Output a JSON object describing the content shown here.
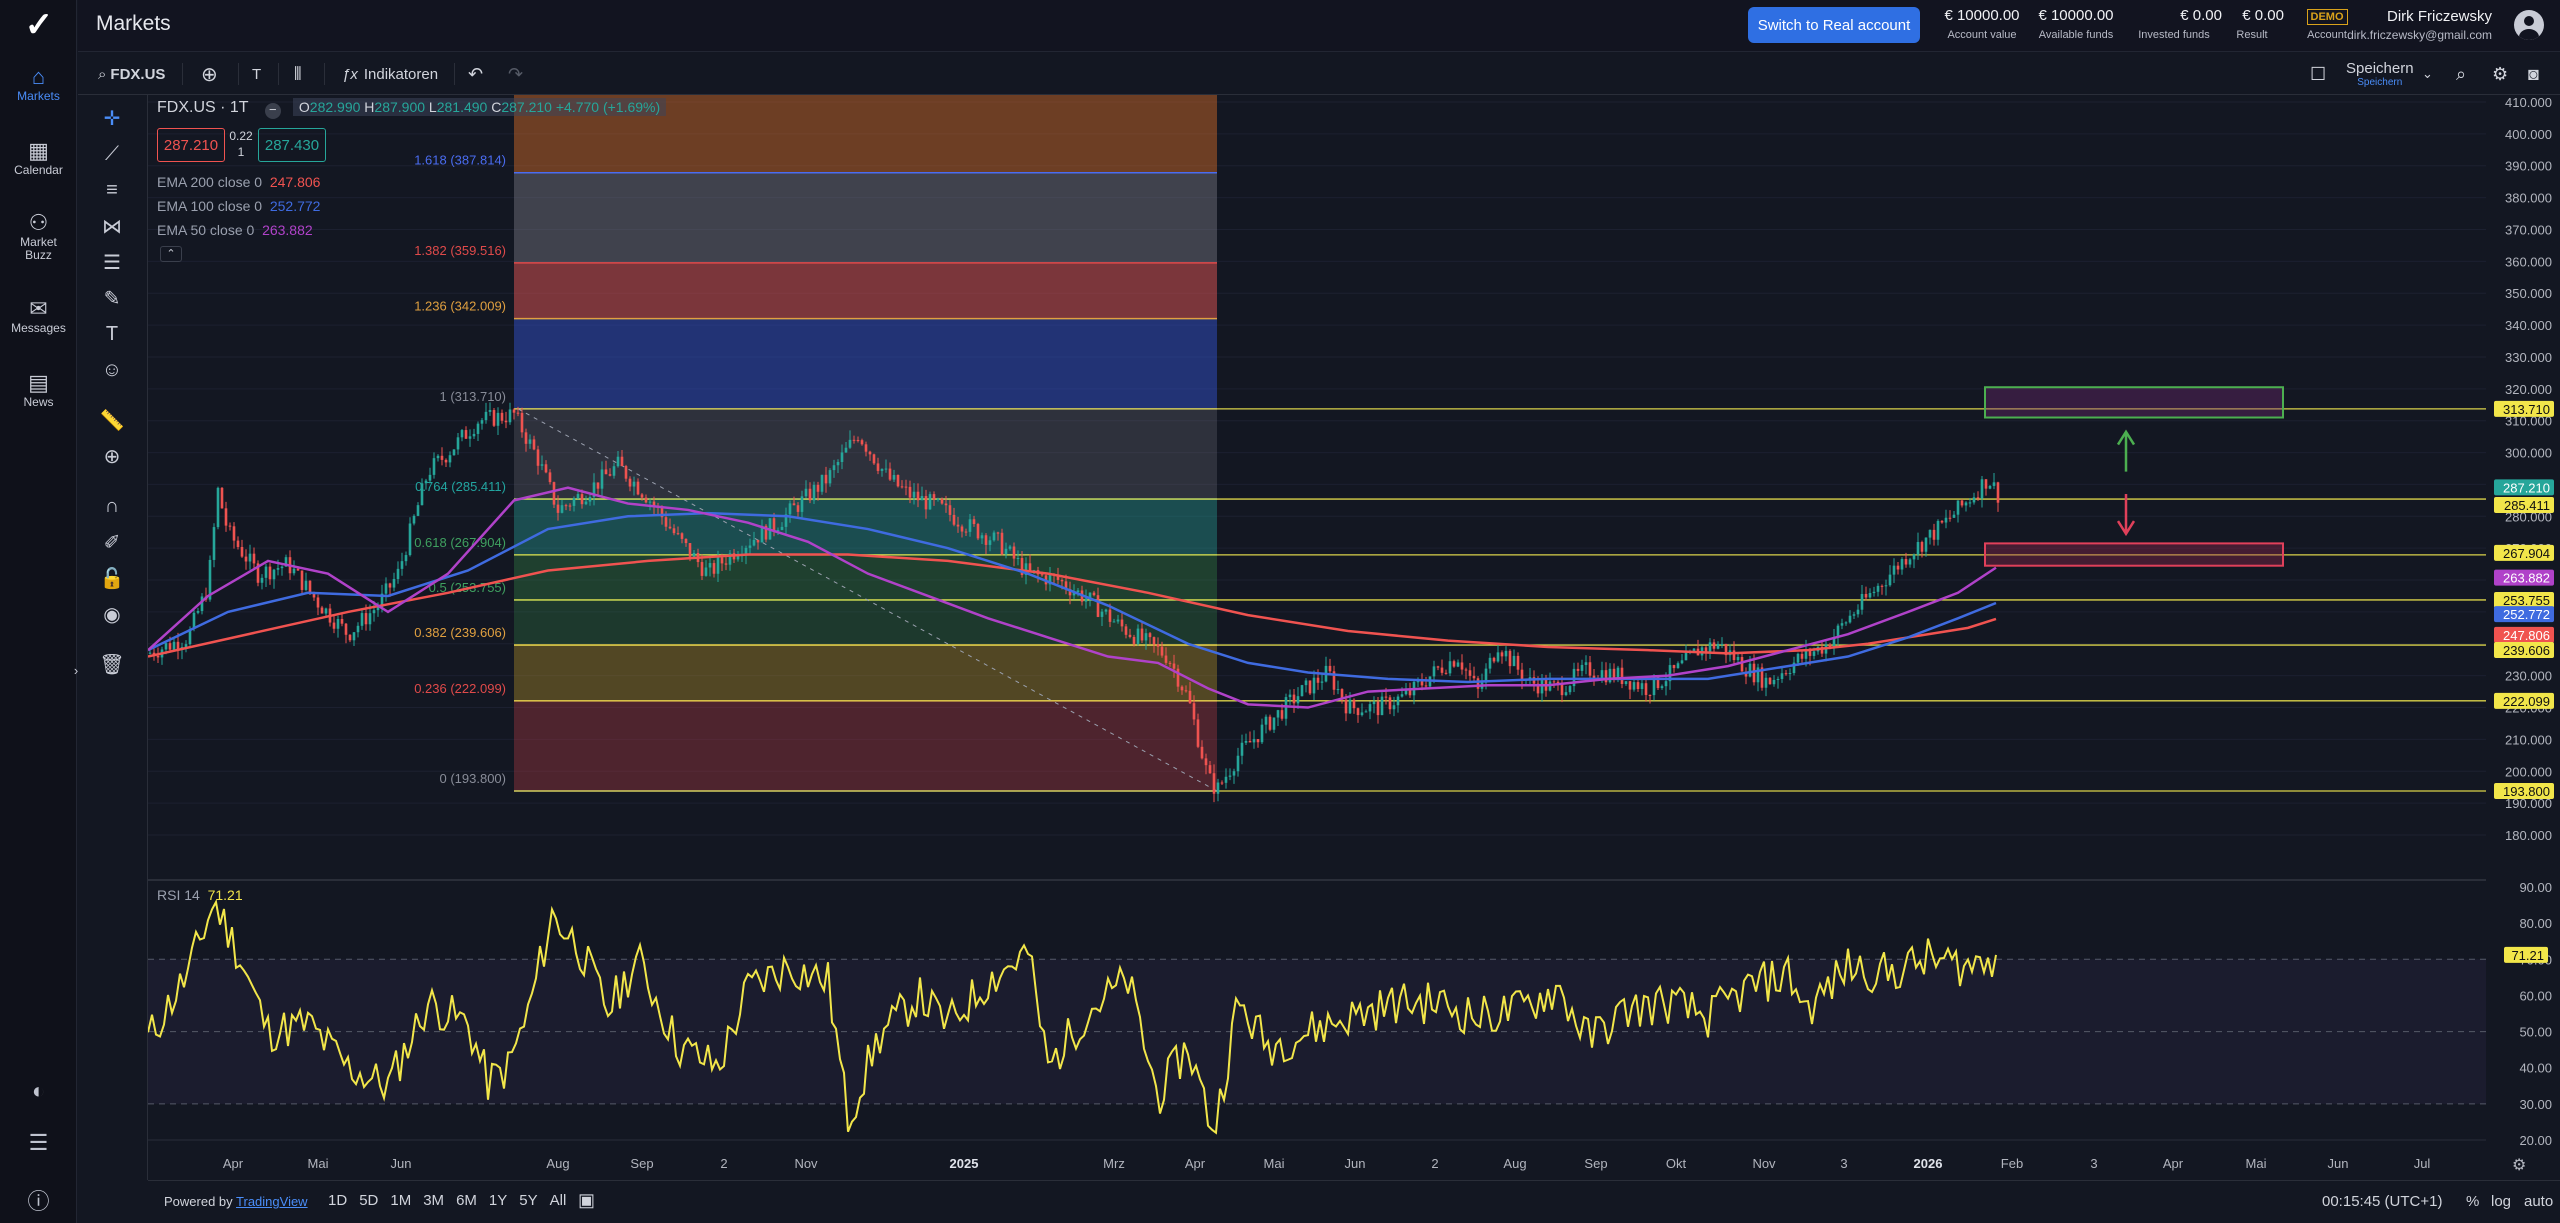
{
  "app": {
    "title": "Markets",
    "switch_btn": "Switch to Real account",
    "demo_badge": "DEMO"
  },
  "stats": [
    {
      "value": "€ 10000.00",
      "label": "Account value"
    },
    {
      "value": "€ 10000.00",
      "label": "Available funds"
    },
    {
      "value": "€ 0.00",
      "label": "Invested funds"
    },
    {
      "value": "€ 0.00",
      "label": "Result"
    },
    {
      "value": "",
      "label": "Account"
    }
  ],
  "user": {
    "name": "Dirk Friczewsky",
    "email": "dirk.friczewsky@gmail.com"
  },
  "nav": [
    {
      "label": "Markets",
      "icon": "home-icon"
    },
    {
      "label": "Calendar",
      "icon": "calendar-icon"
    },
    {
      "label": "Market\nBuzz",
      "icon": "buzz-icon"
    },
    {
      "label": "Messages",
      "icon": "mail-icon"
    },
    {
      "label": "News",
      "icon": "news-icon"
    }
  ],
  "toolbar": {
    "symbol": "FDX.US",
    "interval": "T",
    "indicators": "Indikatoren",
    "save": "Speichern",
    "saved_sub": "Speichern"
  },
  "legend": {
    "symbol": "FDX.US · 1T",
    "o_label": "O",
    "o": "282.990",
    "h_label": "H",
    "h": "287.900",
    "l_label": "L",
    "l": "281.490",
    "c_label": "C",
    "c": "287.210",
    "chg": "+4.770 (+1.69%)",
    "bid": "287.210",
    "spread_top": "0.22",
    "spread_bot": "1",
    "ask": "287.430"
  },
  "emas": [
    {
      "label": "EMA 200 close 0",
      "value": "247.806",
      "color": "#f05350"
    },
    {
      "label": "EMA 100 close 0",
      "value": "252.772",
      "color": "#3f6be0"
    },
    {
      "label": "EMA 50 close 0",
      "value": "263.882",
      "color": "#b042c9"
    }
  ],
  "rsi": {
    "label": "RSI",
    "period": "14",
    "value": "71.21"
  },
  "fib_levels": [
    {
      "label": "1.618 (387.814)",
      "value": 387.814,
      "color": "#4a6cf0"
    },
    {
      "label": "1.382 (359.516)",
      "value": 359.516,
      "color": "#e04a4a"
    },
    {
      "label": "1.236 (342.009)",
      "value": 342.009,
      "color": "#e0a040"
    },
    {
      "label": "1 (313.710)",
      "value": 313.71,
      "color": "#888c98"
    },
    {
      "label": "0.764 (285.411)",
      "value": 285.411,
      "color": "#22a5a0"
    },
    {
      "label": "0.618 (267.904)",
      "value": 267.904,
      "color": "#3fa060"
    },
    {
      "label": "0.5 (253.755)",
      "value": 253.755,
      "color": "#3fa060"
    },
    {
      "label": "0.382 (239.606)",
      "value": 239.606,
      "color": "#e0a040"
    },
    {
      "label": "0.236 (222.099)",
      "value": 222.099,
      "color": "#e04a4a"
    },
    {
      "label": "0 (193.800)",
      "value": 193.8,
      "color": "#888c98"
    }
  ],
  "price_axis": [
    "410.000",
    "400.000",
    "390.000",
    "380.000",
    "370.000",
    "360.000",
    "350.000",
    "340.000",
    "330.000",
    "320.000",
    "310.000",
    "300.000",
    "290.000",
    "280.000",
    "270.000",
    "260.000",
    "250.000",
    "240.000",
    "230.000",
    "220.000",
    "210.000",
    "200.000",
    "190.000",
    "180.000"
  ],
  "rsi_axis": [
    "90.00",
    "80.00",
    "70.00",
    "60.00",
    "50.00",
    "40.00",
    "30.00",
    "20.00"
  ],
  "price_tags": [
    {
      "text": "313.710",
      "value": 313.71,
      "bg": "#f2e64a",
      "fg": "#111"
    },
    {
      "text": "287.210",
      "value": 287.21,
      "bg": "#26a69a",
      "fg": "#fff"
    },
    {
      "text": "285.411",
      "value": 285.411,
      "bg": "#f2e64a",
      "fg": "#111"
    },
    {
      "text": "267.904",
      "value": 267.904,
      "bg": "#f2e64a",
      "fg": "#111"
    },
    {
      "text": "263.882",
      "value": 263.882,
      "bg": "#b042c9",
      "fg": "#fff"
    },
    {
      "text": "253.755",
      "value": 253.755,
      "bg": "#f2e64a",
      "fg": "#111"
    },
    {
      "text": "252.772",
      "value": 252.772,
      "bg": "#3f6be0",
      "fg": "#fff"
    },
    {
      "text": "247.806",
      "value": 247.806,
      "bg": "#f05350",
      "fg": "#fff"
    },
    {
      "text": "239.606",
      "value": 239.606,
      "bg": "#f2e64a",
      "fg": "#111"
    },
    {
      "text": "222.099",
      "value": 222.099,
      "bg": "#f2e64a",
      "fg": "#111"
    },
    {
      "text": "193.800",
      "value": 193.8,
      "bg": "#f2e64a",
      "fg": "#111"
    }
  ],
  "rsi_tag": "71.21",
  "time_axis": [
    {
      "t": "Apr",
      "b": false
    },
    {
      "t": "Mai",
      "b": false
    },
    {
      "t": "Jun",
      "b": false
    },
    {
      "t": "Aug",
      "b": false
    },
    {
      "t": "Sep",
      "b": false
    },
    {
      "t": "2",
      "b": false
    },
    {
      "t": "Nov",
      "b": false
    },
    {
      "t": "2025",
      "b": true
    },
    {
      "t": "Mrz",
      "b": false
    },
    {
      "t": "Apr",
      "b": false
    },
    {
      "t": "Mai",
      "b": false
    },
    {
      "t": "Jun",
      "b": false
    },
    {
      "t": "2",
      "b": false
    },
    {
      "t": "Aug",
      "b": false
    },
    {
      "t": "Sep",
      "b": false
    },
    {
      "t": "Okt",
      "b": false
    },
    {
      "t": "Nov",
      "b": false
    },
    {
      "t": "3",
      "b": false
    },
    {
      "t": "2026",
      "b": true
    },
    {
      "t": "Feb",
      "b": false
    },
    {
      "t": "3",
      "b": false
    },
    {
      "t": "Apr",
      "b": false
    },
    {
      "t": "Mai",
      "b": false
    },
    {
      "t": "Jun",
      "b": false
    },
    {
      "t": "Jul",
      "b": false
    }
  ],
  "bottom": {
    "powered": "Powered by ",
    "tv": "TradingView",
    "ranges": [
      "1D",
      "5D",
      "1M",
      "3M",
      "6M",
      "1Y",
      "5Y",
      "All"
    ],
    "clock": "00:15:45 (UTC+1)",
    "pct": "%",
    "log": "log",
    "auto": "auto"
  },
  "chart_data": {
    "type": "candlestick",
    "symbol": "FDX.US",
    "interval": "1T",
    "y_range": [
      175,
      413
    ],
    "last_close": 287.21,
    "rsi_last": 71.21,
    "rsi_range": [
      15,
      95
    ]
  }
}
